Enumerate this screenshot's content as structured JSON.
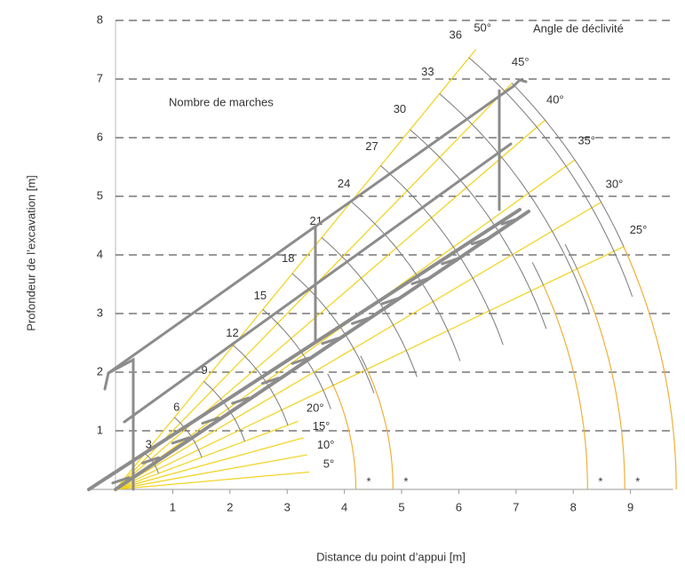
{
  "chart_data": {
    "type": "fan",
    "xlabel": "Distance du point d’appui [m]",
    "ylabel": "Profondeur de l’excavation [m]",
    "steps_title": "Nombre de marches",
    "angle_title": "Angle de déclivité",
    "xlim": [
      0,
      9.9
    ],
    "ylim": [
      0,
      8
    ],
    "xticks": [
      1,
      2,
      3,
      4,
      5,
      6,
      7,
      8,
      9
    ],
    "yticks": [
      1,
      2,
      3,
      4,
      5,
      6,
      7,
      8
    ],
    "grid": true,
    "angles": [
      {
        "value": 5,
        "label": "5°"
      },
      {
        "value": 10,
        "label": "10°"
      },
      {
        "value": 15,
        "label": "15°"
      },
      {
        "value": 20,
        "label": "20°"
      },
      {
        "value": 25,
        "label": "25°"
      },
      {
        "value": 30,
        "label": "30°"
      },
      {
        "value": 35,
        "label": "35°"
      },
      {
        "value": 40,
        "label": "40°"
      },
      {
        "value": 45,
        "label": "45°"
      },
      {
        "value": 50,
        "label": "50°"
      }
    ],
    "steps": [
      3,
      6,
      9,
      12,
      15,
      18,
      21,
      24,
      27,
      30,
      33,
      36
    ],
    "reach_arcs": [
      4.2,
      4.85,
      8.25,
      8.9,
      9.8
    ],
    "reach_label": "*",
    "ray_color": "#f2d21a",
    "step_arc_color": "#7a7a7a",
    "reach_color": "#eeb03a"
  }
}
